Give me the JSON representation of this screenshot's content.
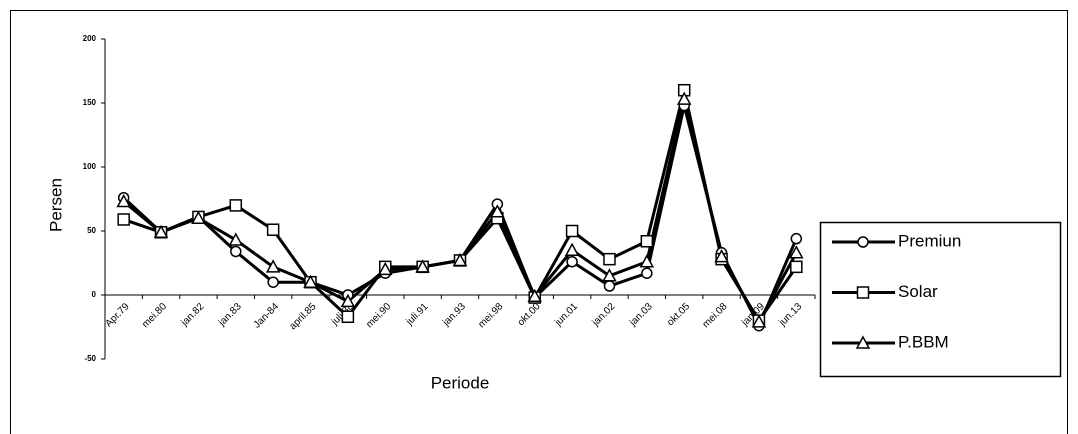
{
  "chart_data": {
    "type": "line",
    "x_label": "Periode",
    "y_label": "Persen",
    "categories": [
      "Apr.79",
      "mei.80",
      "jan.82",
      "jan.83",
      "Jan-84",
      "april.85",
      "juli.88",
      "mei.90",
      "juli.91",
      "jan.93",
      "mei.98",
      "okt.00",
      "jun.01",
      "jan.02",
      "jan.03",
      "okt.05",
      "mei.08",
      "jan.09",
      "jun.13"
    ],
    "series": [
      {
        "name": "Premiun",
        "color": "#000000",
        "marker": "circle",
        "values": [
          76,
          49,
          61,
          34,
          10,
          10,
          0,
          17,
          22,
          27,
          71,
          -2,
          26,
          7,
          17,
          148,
          33,
          -24,
          44
        ]
      },
      {
        "name": "Solar",
        "color": "#000000",
        "marker": "square",
        "values": [
          59,
          49,
          61,
          70,
          51,
          10,
          -17,
          22,
          22,
          27,
          60,
          -2,
          50,
          28,
          42,
          160,
          28,
          -20,
          22
        ]
      },
      {
        "name": "P.BBM",
        "color": "#000000",
        "marker": "triangle",
        "values": [
          73,
          49,
          60,
          43,
          22,
          10,
          -5,
          20,
          22,
          27,
          65,
          -1,
          35,
          15,
          26,
          153,
          30,
          -21,
          33
        ]
      }
    ],
    "ylim": [
      -50,
      200
    ],
    "yticks": [
      -50,
      0,
      50,
      100,
      150,
      200
    ],
    "grid": false,
    "legend": "right"
  }
}
